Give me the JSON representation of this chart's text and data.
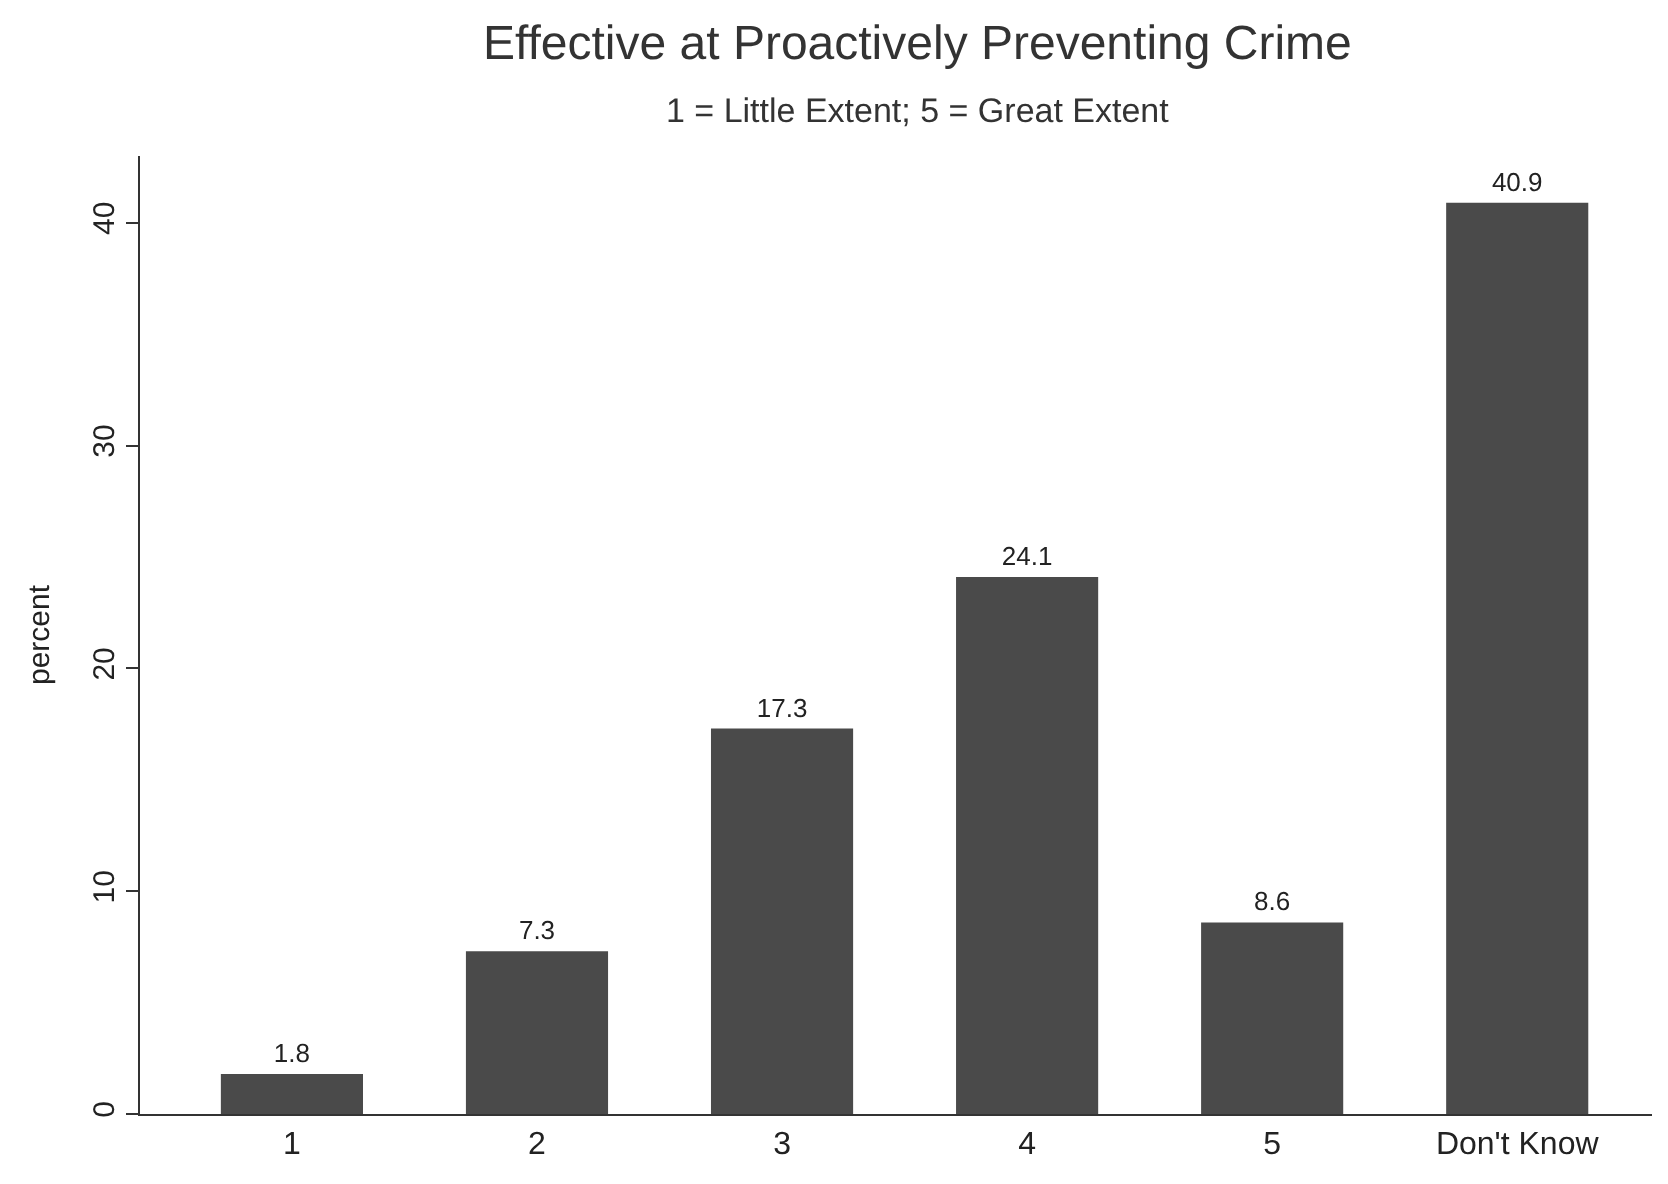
{
  "chart_data": {
    "type": "bar",
    "title": "Effective at Proactively Preventing Crime",
    "subtitle": "1 = Little Extent; 5 = Great Extent",
    "ylabel": "percent",
    "categories": [
      "1",
      "2",
      "3",
      "4",
      "5",
      "Don't Know"
    ],
    "values": [
      1.8,
      7.3,
      17.3,
      24.1,
      8.6,
      40.9
    ],
    "color": "#4a4a4a",
    "data_labels": true,
    "ylim": [
      0,
      43
    ],
    "yticks": [
      0,
      10,
      20,
      30,
      40
    ]
  }
}
